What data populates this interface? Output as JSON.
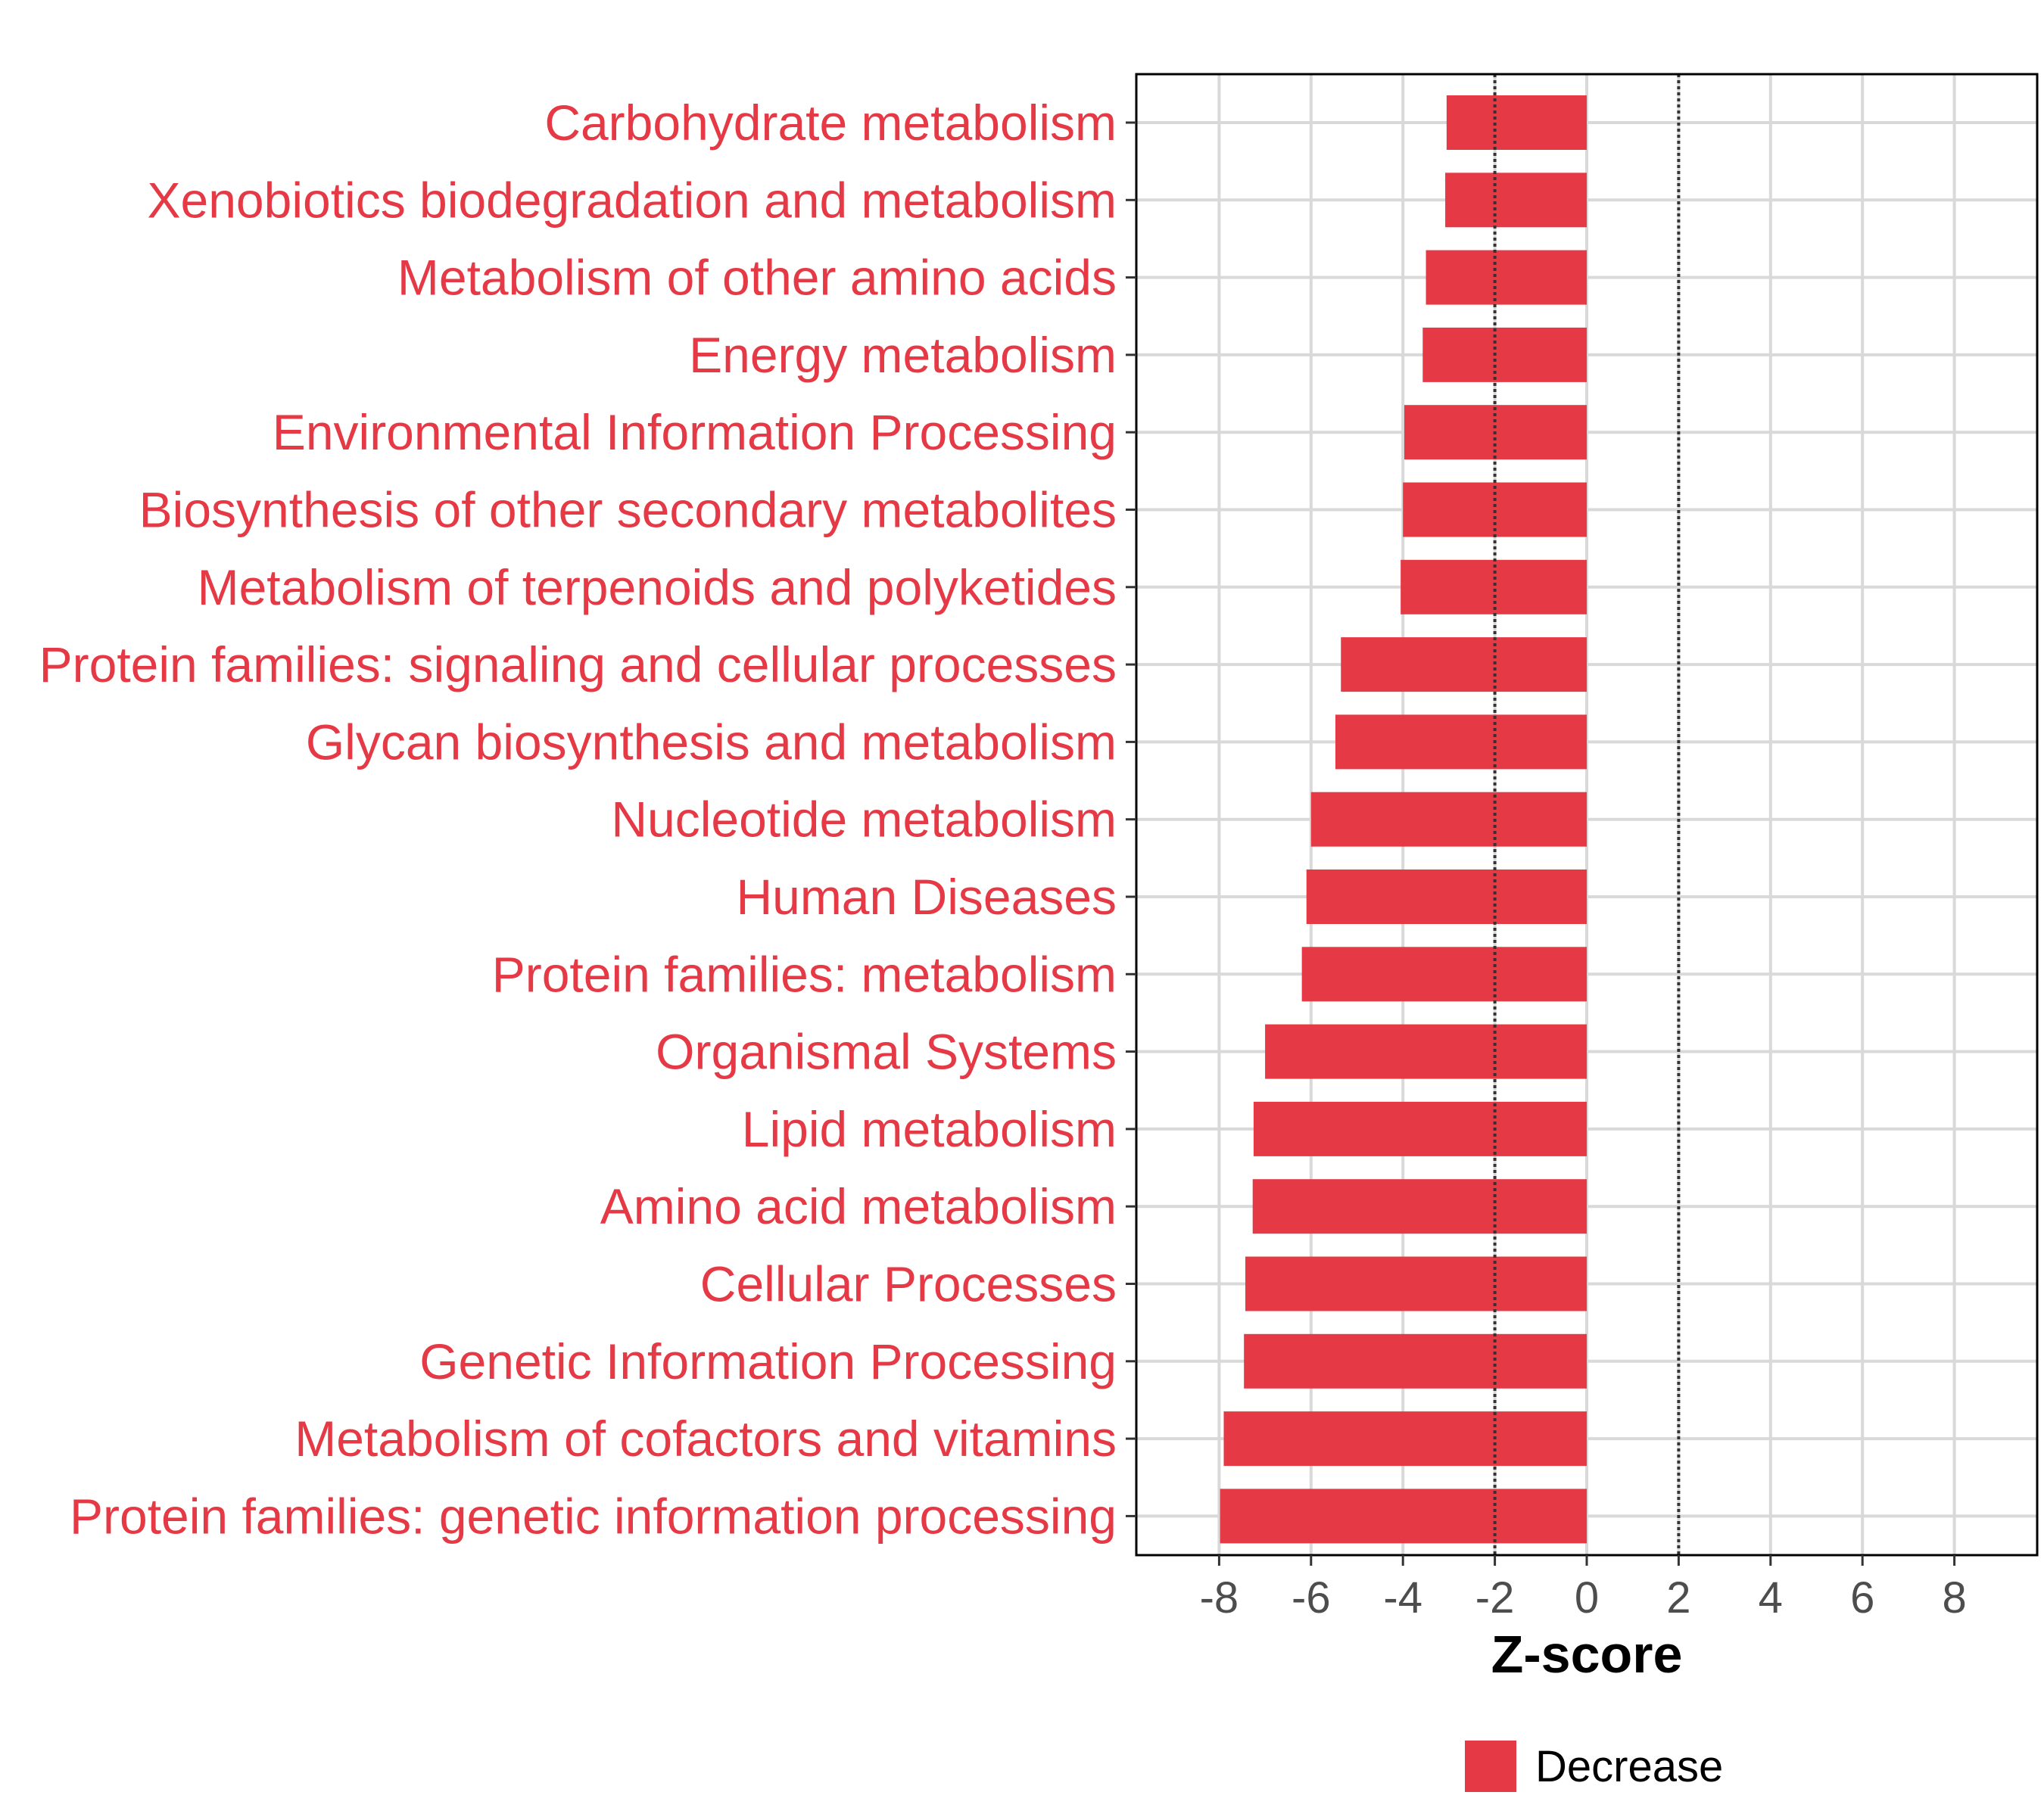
{
  "chart_data": {
    "type": "bar",
    "orientation": "horizontal",
    "categories": [
      "Carbohydrate metabolism",
      "Xenobiotics biodegradation and metabolism",
      "Metabolism of other amino acids",
      "Energy metabolism",
      "Environmental Information Processing",
      "Biosynthesis of other secondary metabolites",
      "Metabolism of terpenoids and polyketides",
      "Protein families: signaling and cellular processes",
      "Glycan biosynthesis and metabolism",
      "Nucleotide metabolism",
      "Human Diseases",
      "Protein families: metabolism",
      "Organismal Systems",
      "Lipid metabolism",
      "Amino acid metabolism",
      "Cellular Processes",
      "Genetic Information Processing",
      "Metabolism of cofactors and vitamins",
      "Protein families: genetic information processing"
    ],
    "values": [
      -3.05,
      -3.08,
      -3.5,
      -3.57,
      -3.97,
      -4.0,
      -4.05,
      -5.35,
      -5.47,
      -6.0,
      -6.1,
      -6.2,
      -7.0,
      -7.25,
      -7.27,
      -7.43,
      -7.46,
      -7.9,
      -7.98
    ],
    "xlabel": "Z-score",
    "ylabel": "",
    "title": "",
    "xlim": [
      -9.8,
      9.8
    ],
    "xticks": [
      -8,
      -6,
      -4,
      -2,
      0,
      2,
      4,
      6,
      8
    ],
    "reference_lines": [
      -2,
      2
    ],
    "grid": true,
    "legend": {
      "position": "bottom",
      "entries": [
        {
          "label": "Decrease",
          "color": "#E63946"
        }
      ]
    },
    "colors": {
      "bar": "#E63946",
      "category_label": "#E63946",
      "tick_label": "#4d4d4d",
      "grid": "#d9d9d9",
      "reference_line": "#333333"
    }
  }
}
